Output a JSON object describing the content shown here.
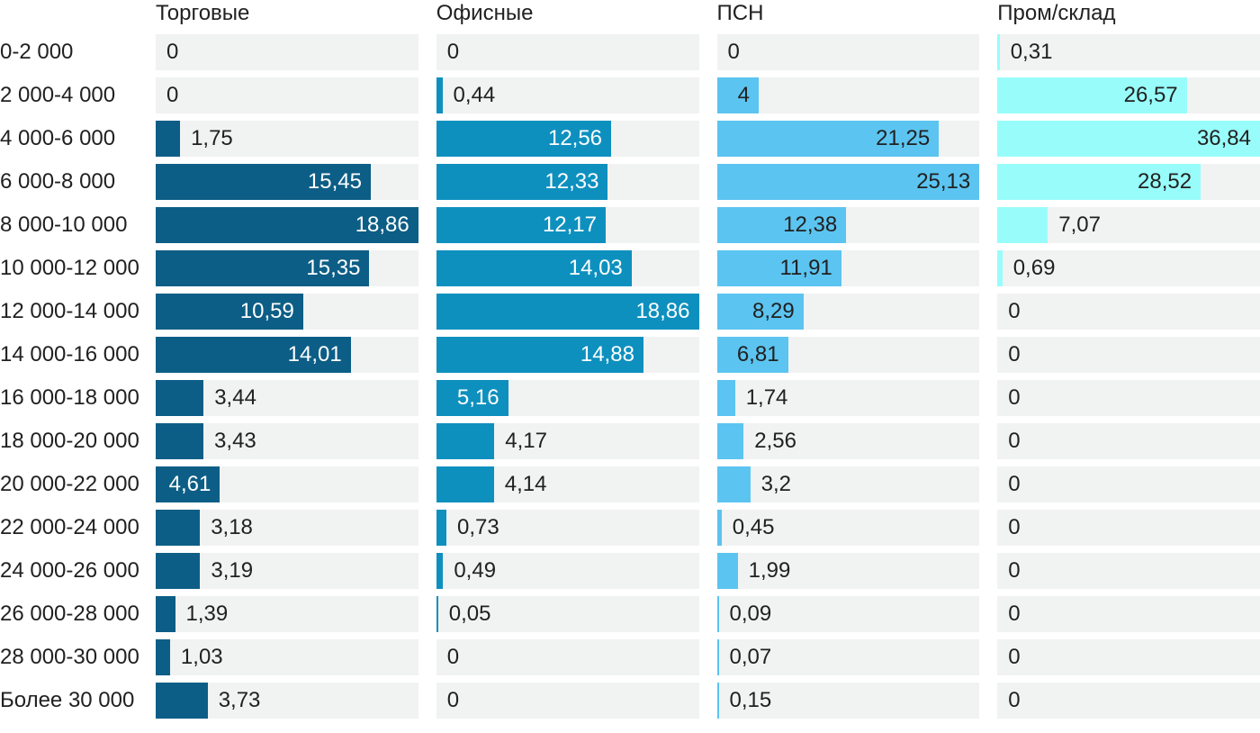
{
  "chart_data": {
    "type": "bar",
    "orientation": "horizontal",
    "grid": false,
    "legend_position": "column-headers-top",
    "scaling": "each series scaled to its own maximum; bar length = value / series max",
    "decimal_separator": ",",
    "track_color": "#f1f2f2",
    "text_color": "#212121",
    "background_color": "#ffffff",
    "categories": [
      "0-2 000",
      "2 000-4 000",
      "4 000-6 000",
      "6 000-8 000",
      "8 000-10 000",
      "10 000-12 000",
      "12 000-14 000",
      "14 000-16 000",
      "16 000-18 000",
      "18 000-20 000",
      "20 000-22 000",
      "22 000-24 000",
      "24 000-26 000",
      "26 000-28 000",
      "28 000-30 000",
      "Более 30 000"
    ],
    "series": [
      {
        "name": "Торговые",
        "color": "#0d5e86",
        "inside_label_color": "#ffffff",
        "values": [
          0,
          0,
          1.75,
          15.45,
          18.86,
          15.35,
          10.59,
          14.01,
          3.44,
          3.43,
          4.61,
          3.18,
          3.19,
          1.39,
          1.03,
          3.73
        ],
        "value_labels": [
          "0",
          "0",
          "1,75",
          "15,45",
          "18,86",
          "15,35",
          "10,59",
          "14,01",
          "3,44",
          "3,43",
          "4,61",
          "3,18",
          "3,19",
          "1,39",
          "1,03",
          "3,73"
        ]
      },
      {
        "name": "Офисные",
        "color": "#0e90bf",
        "inside_label_color": "#ffffff",
        "values": [
          0,
          0.44,
          12.56,
          12.33,
          12.17,
          14.03,
          18.86,
          14.88,
          5.16,
          4.17,
          4.14,
          0.73,
          0.49,
          0.05,
          0,
          0
        ],
        "value_labels": [
          "0",
          "0,44",
          "12,56",
          "12,33",
          "12,17",
          "14,03",
          "18,86",
          "14,88",
          "5,16",
          "4,17",
          "4,14",
          "0,73",
          "0,49",
          "0,05",
          "0",
          "0"
        ]
      },
      {
        "name": "ПСН",
        "color": "#5cc4f0",
        "inside_label_color": "#212121",
        "values": [
          0,
          4,
          21.25,
          25.13,
          12.38,
          11.91,
          8.29,
          6.81,
          1.74,
          2.56,
          3.2,
          0.45,
          1.99,
          0.09,
          0.07,
          0.15
        ],
        "value_labels": [
          "0",
          "4",
          "21,25",
          "25,13",
          "12,38",
          "11,91",
          "8,29",
          "6,81",
          "1,74",
          "2,56",
          "3,2",
          "0,45",
          "1,99",
          "0,09",
          "0,07",
          "0,15"
        ]
      },
      {
        "name": "Пром/склад",
        "color": "#98fdfa",
        "inside_label_color": "#212121",
        "values": [
          0.31,
          26.57,
          36.84,
          28.52,
          7.07,
          0.69,
          0,
          0,
          0,
          0,
          0,
          0,
          0,
          0,
          0,
          0
        ],
        "value_labels": [
          "0,31",
          "26,57",
          "36,84",
          "28,52",
          "7,07",
          "0,69",
          "0",
          "0",
          "0",
          "0",
          "0",
          "0",
          "0",
          "0",
          "0",
          "0"
        ]
      }
    ]
  }
}
